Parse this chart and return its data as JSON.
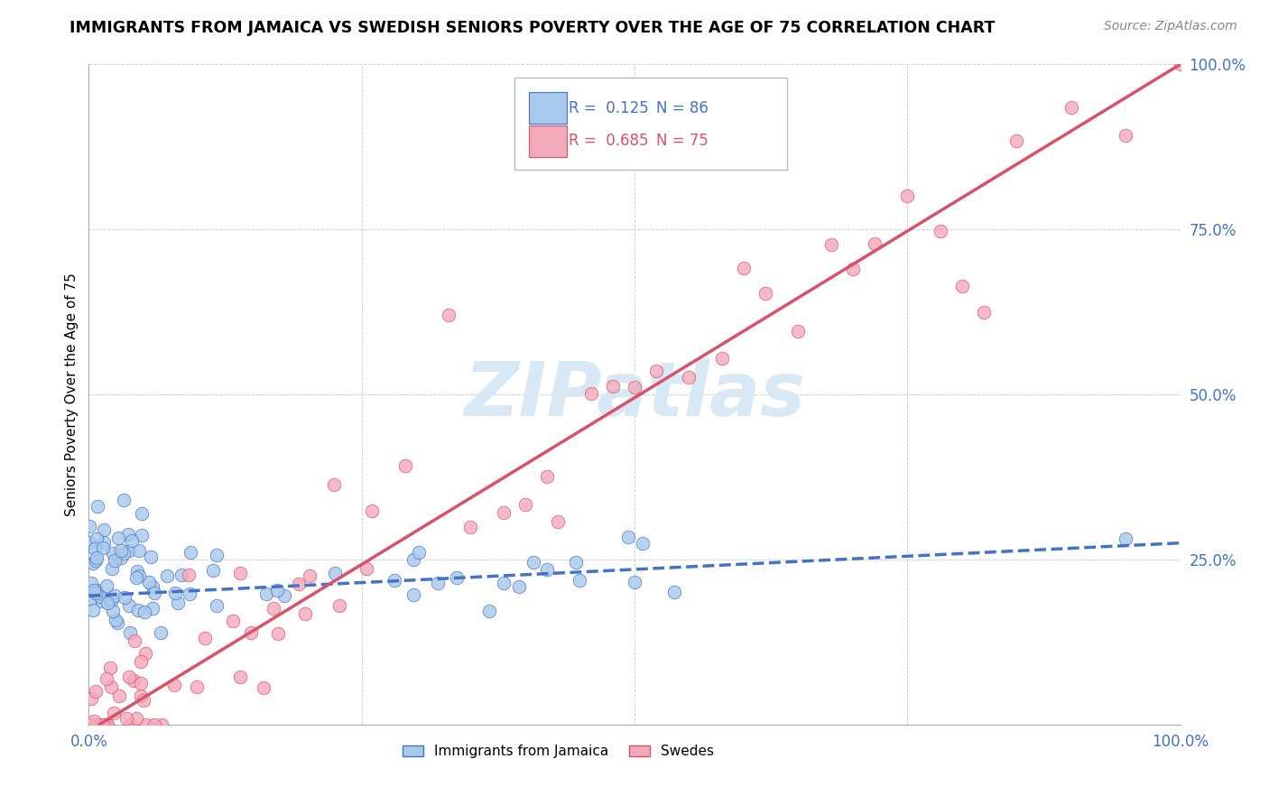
{
  "title": "IMMIGRANTS FROM JAMAICA VS SWEDISH SENIORS POVERTY OVER THE AGE OF 75 CORRELATION CHART",
  "source": "Source: ZipAtlas.com",
  "ylabel": "Seniors Poverty Over the Age of 75",
  "xlim": [
    0,
    1.0
  ],
  "ylim": [
    0,
    1.0
  ],
  "title_fontsize": 13,
  "legend_R1": "R =  0.125",
  "legend_N1": "N = 86",
  "legend_R2": "R =  0.685",
  "legend_N2": "N = 75",
  "series1_label": "Immigrants from Jamaica",
  "series2_label": "Swedes",
  "color1": "#A8C8EC",
  "color2": "#F4A8BC",
  "line1_color": "#4472C4",
  "line2_color": "#D9526A",
  "watermark_color": "#D8E8F4",
  "watermark_text": "ZIPatlas"
}
